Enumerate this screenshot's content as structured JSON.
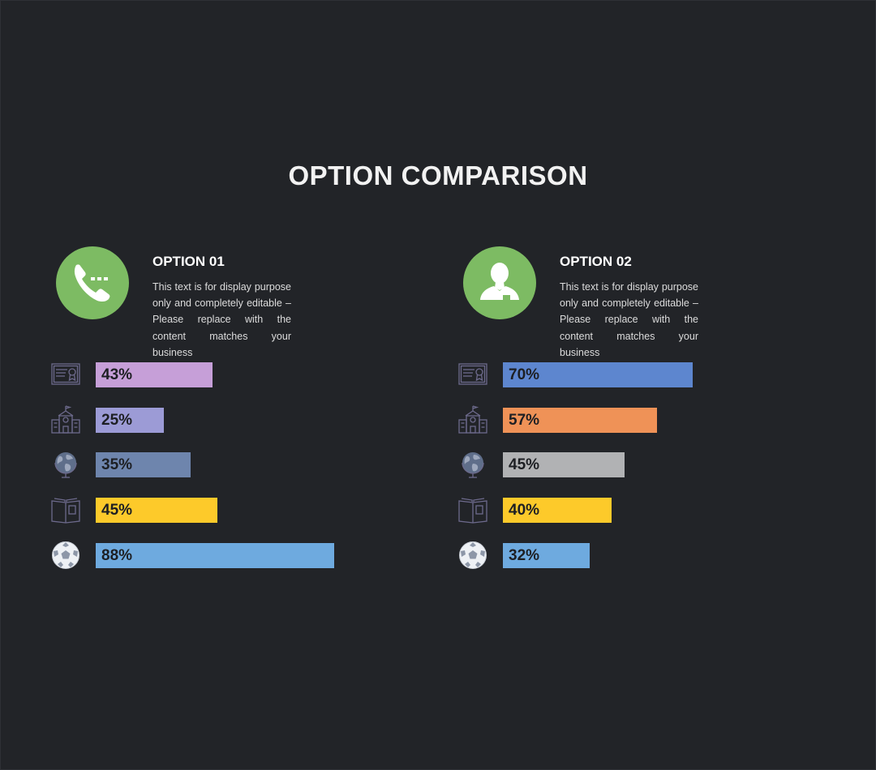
{
  "page_title": "OPTION COMPARISON",
  "chart_data": {
    "type": "bar",
    "title": "OPTION COMPARISON",
    "orientation": "horizontal",
    "xlim": [
      0,
      100
    ],
    "unit": "%",
    "row_icons": [
      "certificate-icon",
      "school-icon",
      "globe-icon",
      "book-icon",
      "soccer-ball-icon"
    ],
    "series": [
      {
        "name": "OPTION 01",
        "description": "This text is for display purpose only and completely editable – Please replace with the content matches your business",
        "avatar_icon": "phone-icon",
        "values": [
          43,
          25,
          35,
          45,
          88
        ],
        "labels": [
          "43%",
          "25%",
          "35%",
          "45%",
          "88%"
        ],
        "colors": [
          "#c69fd8",
          "#9c9bd6",
          "#6e85ad",
          "#fdca2a",
          "#6eaadf"
        ]
      },
      {
        "name": "OPTION 02",
        "description": "This text is for display purpose only and completely editable – Please replace with the content matches your business",
        "avatar_icon": "person-icon",
        "values": [
          70,
          57,
          45,
          40,
          32
        ],
        "labels": [
          "70%",
          "57%",
          "45%",
          "40%",
          "32%"
        ],
        "colors": [
          "#5d86cf",
          "#ef9257",
          "#b1b2b4",
          "#fdca2a",
          "#6eaadf"
        ]
      }
    ]
  },
  "colors": {
    "background": "#222428",
    "avatar": "#7dbb63",
    "icon_stroke": "#6d6a8c"
  }
}
